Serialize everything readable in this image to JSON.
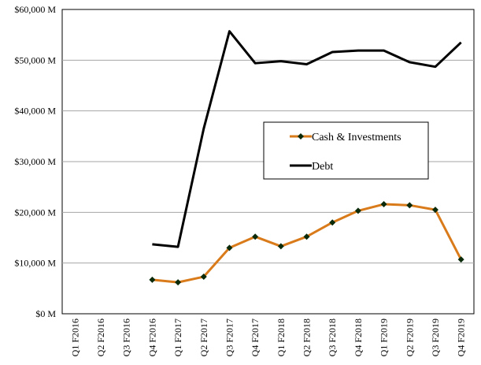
{
  "chart_data": {
    "type": "line",
    "categories": [
      "Q1 F2016",
      "Q2 F2016",
      "Q3 F2016",
      "Q4 F2016",
      "Q1 F2017",
      "Q2 F2017",
      "Q3 F2017",
      "Q4 F2017",
      "Q1 F2018",
      "Q2 F2018",
      "Q3 F2018",
      "Q4 F2018",
      "Q1 F2019",
      "Q2 F2019",
      "Q3 F2019",
      "Q4 F2019"
    ],
    "series": [
      {
        "name": "Cash & Investments",
        "color": "#d97b1a",
        "marker": "diamond",
        "marker_color": "#0a2a0a",
        "values": [
          null,
          null,
          null,
          6700,
          6200,
          7300,
          13000,
          15200,
          13300,
          15200,
          18000,
          20300,
          21600,
          21400,
          20500,
          10700
        ]
      },
      {
        "name": "Debt",
        "color": "#000000",
        "marker": "none",
        "values": [
          null,
          null,
          null,
          13700,
          13200,
          36500,
          55700,
          49400,
          49800,
          49200,
          51600,
          51900,
          51900,
          49600,
          48700,
          53500
        ]
      }
    ],
    "yticks": [
      "$0 M",
      "$10,000 M",
      "$20,000 M",
      "$30,000 M",
      "$40,000 M",
      "$50,000 M",
      "$60,000 M"
    ],
    "ylim": [
      0,
      60000
    ],
    "grid": "horizontal",
    "legend_position": "center-right",
    "title": "",
    "xlabel": "",
    "ylabel": ""
  }
}
